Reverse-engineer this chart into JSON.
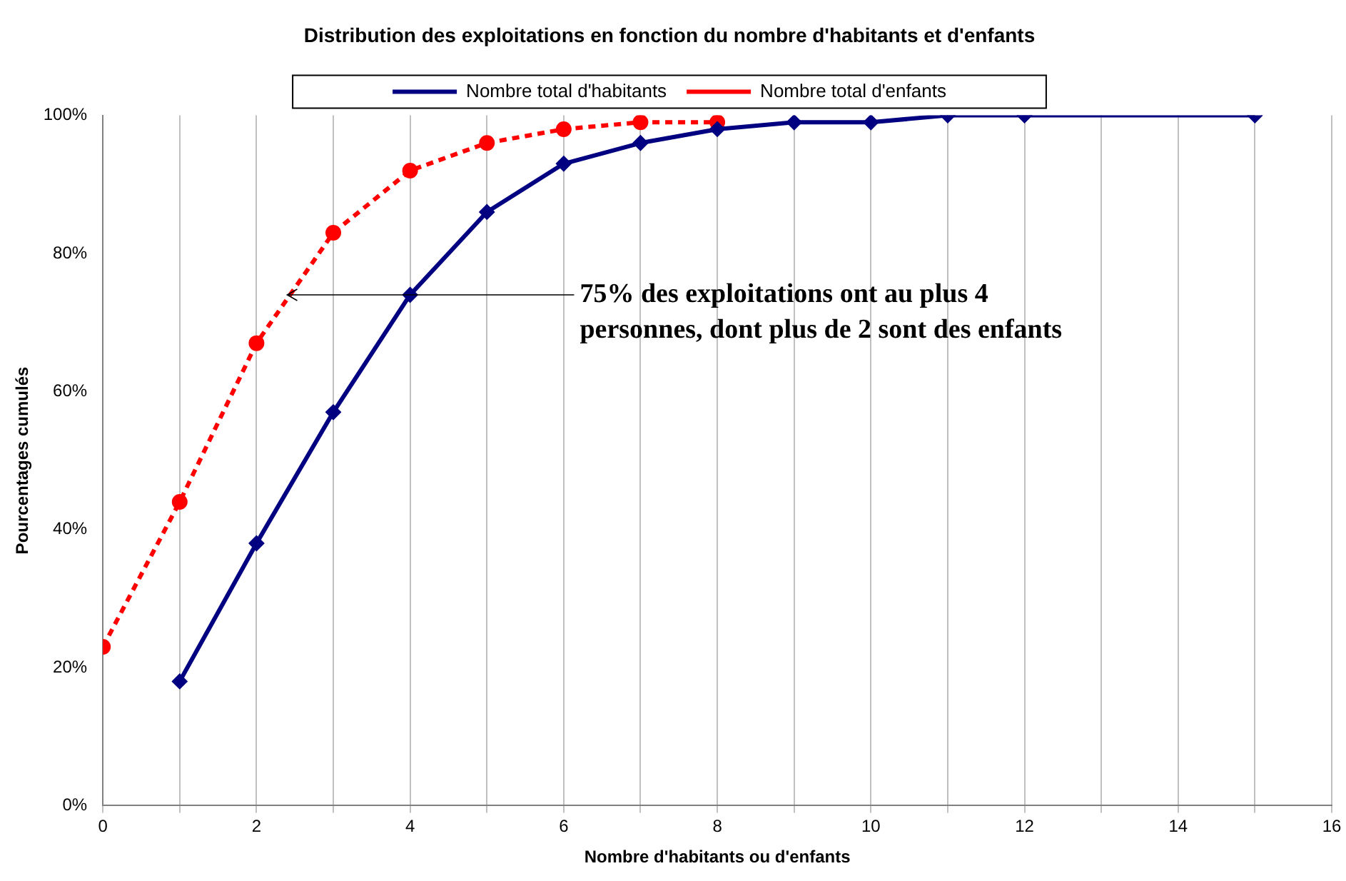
{
  "chart_data": {
    "type": "line",
    "title": "Distribution des exploitations en fonction du nombre d'habitants et d'enfants",
    "xlabel": "Nombre d'habitants ou d'enfants",
    "ylabel": "Pourcentages cumulés",
    "xlim": [
      0,
      16
    ],
    "xticks": [
      0,
      {
        "value": 1,
        "label": null
      },
      2,
      {
        "value": 3,
        "label": null
      },
      4,
      {
        "value": 5,
        "label": null
      },
      6,
      {
        "value": 7,
        "label": null
      },
      8,
      {
        "value": 9,
        "label": null
      },
      10,
      {
        "value": 11,
        "label": null
      },
      12,
      {
        "value": 13,
        "label": null
      },
      14,
      {
        "value": 15,
        "label": null
      },
      16
    ],
    "ylim": [
      0,
      100
    ],
    "yticks": [
      {
        "value": 0,
        "label": "0%"
      },
      {
        "value": 20,
        "label": "20%"
      },
      {
        "value": 40,
        "label": "40%"
      },
      {
        "value": 60,
        "label": "60%"
      },
      {
        "value": 80,
        "label": "80%"
      },
      {
        "value": 100,
        "label": "100%"
      }
    ],
    "grid": "x",
    "legend": "top",
    "series": [
      {
        "name": "Nombre total d'habitants",
        "color": "#000080",
        "marker": "diamond",
        "line_style": "solid",
        "x": [
          1,
          2,
          3,
          4,
          5,
          6,
          7,
          8,
          9,
          10,
          11,
          12,
          15
        ],
        "values": [
          18,
          38,
          57,
          74,
          86,
          93,
          96,
          98,
          99,
          99,
          100,
          100,
          100
        ]
      },
      {
        "name": "Nombre total d'enfants",
        "color": "#ff0000",
        "marker": "circle",
        "line_style": "dashed",
        "x": [
          0,
          1,
          2,
          3,
          4,
          5,
          6,
          7,
          8
        ],
        "values": [
          23,
          44,
          67,
          83,
          92,
          96,
          98,
          99,
          99
        ]
      }
    ],
    "annotations": [
      {
        "text": "75% des exploitations ont au plus 4 personnes, dont plus de 2 sont des enfants",
        "x": 2.4,
        "y": 74
      }
    ]
  }
}
